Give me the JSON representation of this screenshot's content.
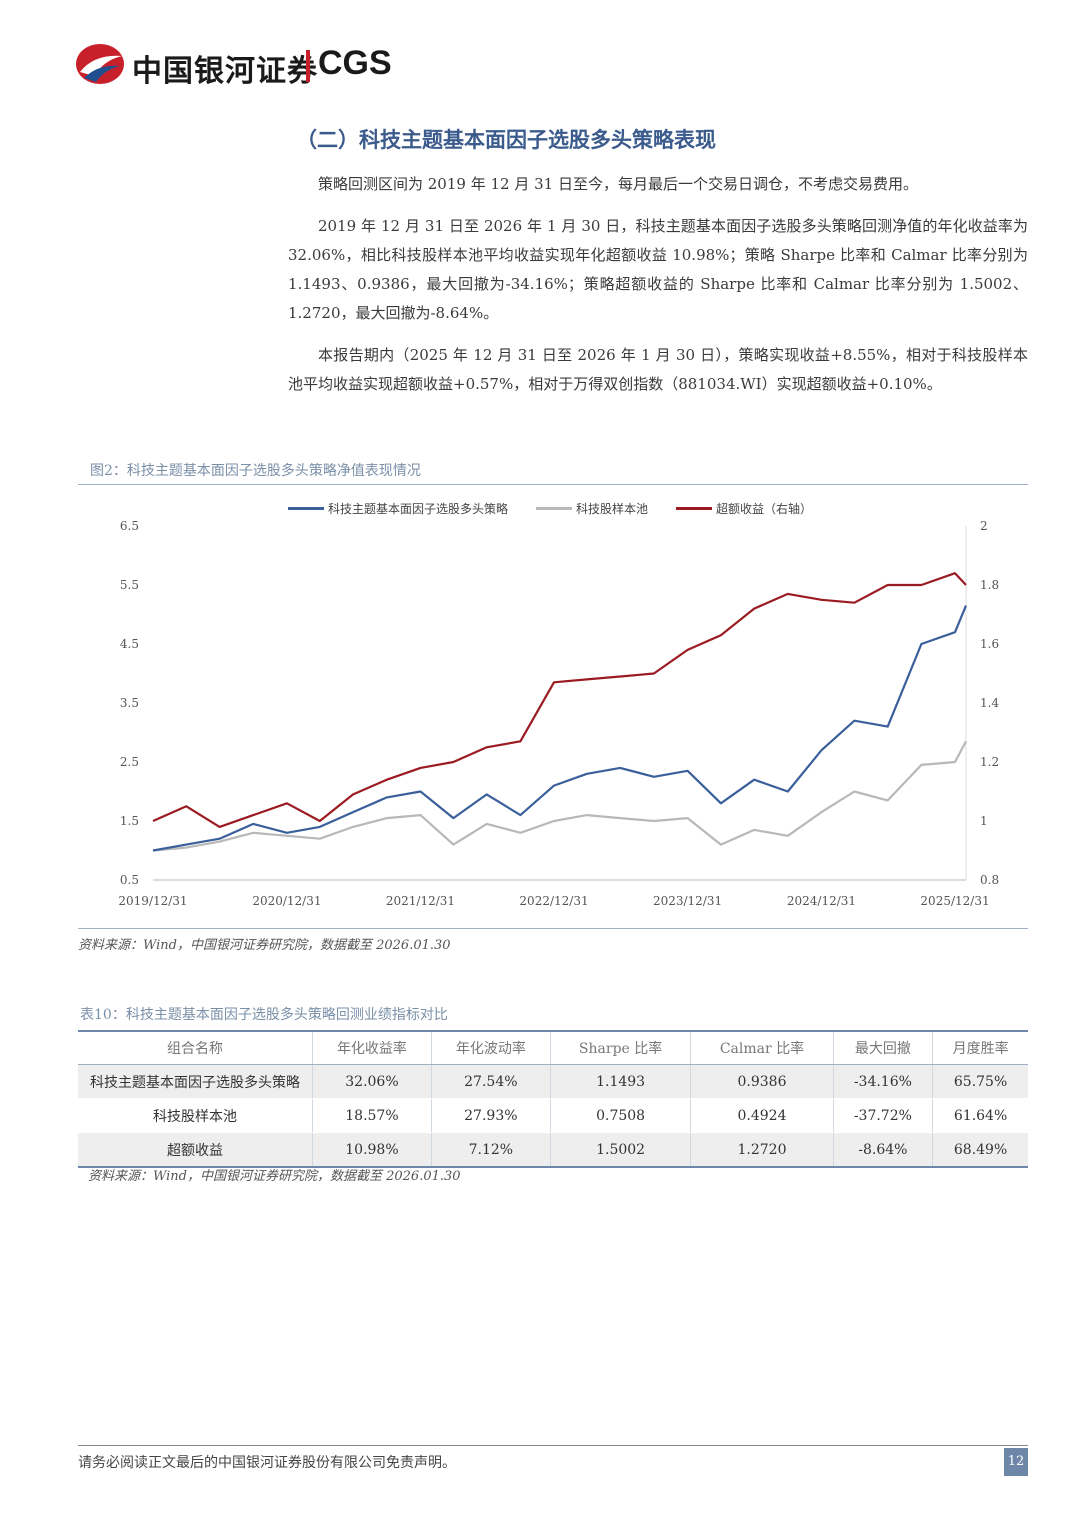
{
  "header": {
    "logo_cn": "中国银河证券",
    "logo_en": "CGS"
  },
  "section": {
    "title": "（二）科技主题基本面因子选股多头策略表现"
  },
  "paragraphs": [
    "策略回测区间为 2019 年 12 月 31 日至今，每月最后一个交易日调仓，不考虑交易费用。",
    "2019 年 12 月 31 日至 2026 年 1 月 30 日，科技主题基本面因子选股多头策略回测净值的年化收益率为 32.06%，相比科技股样本池平均收益实现年化超额收益 10.98%；策略 Sharpe 比率和 Calmar 比率分别为 1.1493、0.9386，最大回撤为-34.16%；策略超额收益的 Sharpe 比率和 Calmar 比率分别为 1.5002、1.2720，最大回撤为-8.64%。",
    "本报告期内（2025 年 12 月 31 日至 2026 年 1 月 30 日），策略实现收益+8.55%，相对于科技股样本池平均收益实现超额收益+0.57%，相对于万得双创指数（881034.WI）实现超额收益+0.10%。"
  ],
  "figure": {
    "title": "图2：科技主题基本面因子选股多头策略净值表现情况",
    "source": "资料来源：Wind，中国银河证券研究院，数据截至 2026.01.30"
  },
  "chart_data": {
    "type": "line",
    "x": [
      "2019/12/31",
      "2020/03/31",
      "2020/06/30",
      "2020/09/30",
      "2020/12/31",
      "2021/03/31",
      "2021/06/30",
      "2021/09/30",
      "2021/12/31",
      "2022/03/31",
      "2022/06/30",
      "2022/09/30",
      "2022/12/31",
      "2023/03/31",
      "2023/06/30",
      "2023/09/30",
      "2023/12/31",
      "2024/03/31",
      "2024/06/30",
      "2024/09/30",
      "2024/12/31",
      "2025/03/31",
      "2025/06/30",
      "2025/09/30",
      "2025/12/31",
      "2026/01/30"
    ],
    "x_tick_labels": [
      "2019/12/31",
      "2020/12/31",
      "2021/12/31",
      "2022/12/31",
      "2023/12/31",
      "2024/12/31",
      "2025/12/31"
    ],
    "y_left_ticks": [
      "0.5",
      "1.5",
      "2.5",
      "3.5",
      "4.5",
      "5.5",
      "6.5"
    ],
    "y_left_range": [
      0.5,
      6.5
    ],
    "y_right_ticks": [
      "0.8",
      "1",
      "1.2",
      "1.4",
      "1.6",
      "1.8",
      "2"
    ],
    "y_right_range": [
      0.8,
      2.0
    ],
    "legend_position": "top",
    "series": [
      {
        "name": "科技主题基本面因子选股多头策略",
        "axis": "left",
        "color": "#3a5f9a",
        "values": [
          1.0,
          1.1,
          1.2,
          1.45,
          1.3,
          1.4,
          1.65,
          1.9,
          2.0,
          1.55,
          1.95,
          1.6,
          2.1,
          2.3,
          2.4,
          2.25,
          2.35,
          1.8,
          2.2,
          2.0,
          2.7,
          3.2,
          3.1,
          4.5,
          4.7,
          5.15
        ]
      },
      {
        "name": "科技股样本池",
        "axis": "left",
        "color": "#b8b8b8",
        "values": [
          1.0,
          1.05,
          1.15,
          1.3,
          1.25,
          1.2,
          1.4,
          1.55,
          1.6,
          1.1,
          1.45,
          1.3,
          1.5,
          1.6,
          1.55,
          1.5,
          1.55,
          1.1,
          1.35,
          1.25,
          1.65,
          2.0,
          1.85,
          2.45,
          2.5,
          2.85
        ]
      },
      {
        "name": "超额收益（右轴）",
        "axis": "right",
        "color": "#9b1b22",
        "values": [
          1.0,
          1.05,
          0.98,
          1.02,
          1.06,
          1.0,
          1.09,
          1.14,
          1.18,
          1.2,
          1.25,
          1.27,
          1.47,
          1.48,
          1.49,
          1.5,
          1.58,
          1.63,
          1.72,
          1.77,
          1.75,
          1.74,
          1.8,
          1.8,
          1.84,
          1.8
        ]
      }
    ]
  },
  "table": {
    "title": "表10：科技主题基本面因子选股多头策略回测业绩指标对比",
    "headers": [
      "组合名称",
      "年化收益率",
      "年化波动率",
      "Sharpe 比率",
      "Calmar 比率",
      "最大回撤",
      "月度胜率"
    ],
    "rows": [
      [
        "科技主题基本面因子选股多头策略",
        "32.06%",
        "27.54%",
        "1.1493",
        "0.9386",
        "-34.16%",
        "65.75%"
      ],
      [
        "科技股样本池",
        "18.57%",
        "27.93%",
        "0.7508",
        "0.4924",
        "-37.72%",
        "61.64%"
      ],
      [
        "超额收益",
        "10.98%",
        "7.12%",
        "1.5002",
        "1.2720",
        "-8.64%",
        "68.49%"
      ]
    ],
    "source": "资料来源：Wind，中国银河证券研究院，数据截至 2026.01.30"
  },
  "footer": {
    "disclaimer": "请务必阅读正文最后的中国银河证券股份有限公司免责声明。",
    "page_number": "12"
  }
}
